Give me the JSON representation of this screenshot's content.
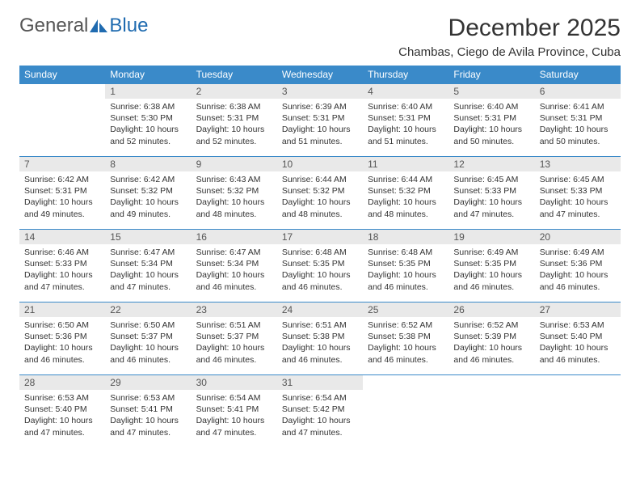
{
  "logo": {
    "text_general": "General",
    "text_blue": "Blue",
    "color_general": "#666666",
    "color_blue": "#1f6bb0"
  },
  "header": {
    "month_title": "December 2025",
    "location": "Chambas, Ciego de Avila Province, Cuba"
  },
  "style": {
    "header_bg": "#3a8ac9",
    "header_fg": "#ffffff",
    "row_border": "#3a8ac9",
    "daynum_bg": "#e9e9e9",
    "body_bg": "#ffffff"
  },
  "day_names": [
    "Sunday",
    "Monday",
    "Tuesday",
    "Wednesday",
    "Thursday",
    "Friday",
    "Saturday"
  ],
  "weeks": [
    [
      null,
      {
        "n": "1",
        "sunrise": "6:38 AM",
        "sunset": "5:30 PM",
        "daylight": "10 hours and 52 minutes."
      },
      {
        "n": "2",
        "sunrise": "6:38 AM",
        "sunset": "5:31 PM",
        "daylight": "10 hours and 52 minutes."
      },
      {
        "n": "3",
        "sunrise": "6:39 AM",
        "sunset": "5:31 PM",
        "daylight": "10 hours and 51 minutes."
      },
      {
        "n": "4",
        "sunrise": "6:40 AM",
        "sunset": "5:31 PM",
        "daylight": "10 hours and 51 minutes."
      },
      {
        "n": "5",
        "sunrise": "6:40 AM",
        "sunset": "5:31 PM",
        "daylight": "10 hours and 50 minutes."
      },
      {
        "n": "6",
        "sunrise": "6:41 AM",
        "sunset": "5:31 PM",
        "daylight": "10 hours and 50 minutes."
      }
    ],
    [
      {
        "n": "7",
        "sunrise": "6:42 AM",
        "sunset": "5:31 PM",
        "daylight": "10 hours and 49 minutes."
      },
      {
        "n": "8",
        "sunrise": "6:42 AM",
        "sunset": "5:32 PM",
        "daylight": "10 hours and 49 minutes."
      },
      {
        "n": "9",
        "sunrise": "6:43 AM",
        "sunset": "5:32 PM",
        "daylight": "10 hours and 48 minutes."
      },
      {
        "n": "10",
        "sunrise": "6:44 AM",
        "sunset": "5:32 PM",
        "daylight": "10 hours and 48 minutes."
      },
      {
        "n": "11",
        "sunrise": "6:44 AM",
        "sunset": "5:32 PM",
        "daylight": "10 hours and 48 minutes."
      },
      {
        "n": "12",
        "sunrise": "6:45 AM",
        "sunset": "5:33 PM",
        "daylight": "10 hours and 47 minutes."
      },
      {
        "n": "13",
        "sunrise": "6:45 AM",
        "sunset": "5:33 PM",
        "daylight": "10 hours and 47 minutes."
      }
    ],
    [
      {
        "n": "14",
        "sunrise": "6:46 AM",
        "sunset": "5:33 PM",
        "daylight": "10 hours and 47 minutes."
      },
      {
        "n": "15",
        "sunrise": "6:47 AM",
        "sunset": "5:34 PM",
        "daylight": "10 hours and 47 minutes."
      },
      {
        "n": "16",
        "sunrise": "6:47 AM",
        "sunset": "5:34 PM",
        "daylight": "10 hours and 46 minutes."
      },
      {
        "n": "17",
        "sunrise": "6:48 AM",
        "sunset": "5:35 PM",
        "daylight": "10 hours and 46 minutes."
      },
      {
        "n": "18",
        "sunrise": "6:48 AM",
        "sunset": "5:35 PM",
        "daylight": "10 hours and 46 minutes."
      },
      {
        "n": "19",
        "sunrise": "6:49 AM",
        "sunset": "5:35 PM",
        "daylight": "10 hours and 46 minutes."
      },
      {
        "n": "20",
        "sunrise": "6:49 AM",
        "sunset": "5:36 PM",
        "daylight": "10 hours and 46 minutes."
      }
    ],
    [
      {
        "n": "21",
        "sunrise": "6:50 AM",
        "sunset": "5:36 PM",
        "daylight": "10 hours and 46 minutes."
      },
      {
        "n": "22",
        "sunrise": "6:50 AM",
        "sunset": "5:37 PM",
        "daylight": "10 hours and 46 minutes."
      },
      {
        "n": "23",
        "sunrise": "6:51 AM",
        "sunset": "5:37 PM",
        "daylight": "10 hours and 46 minutes."
      },
      {
        "n": "24",
        "sunrise": "6:51 AM",
        "sunset": "5:38 PM",
        "daylight": "10 hours and 46 minutes."
      },
      {
        "n": "25",
        "sunrise": "6:52 AM",
        "sunset": "5:38 PM",
        "daylight": "10 hours and 46 minutes."
      },
      {
        "n": "26",
        "sunrise": "6:52 AM",
        "sunset": "5:39 PM",
        "daylight": "10 hours and 46 minutes."
      },
      {
        "n": "27",
        "sunrise": "6:53 AM",
        "sunset": "5:40 PM",
        "daylight": "10 hours and 46 minutes."
      }
    ],
    [
      {
        "n": "28",
        "sunrise": "6:53 AM",
        "sunset": "5:40 PM",
        "daylight": "10 hours and 47 minutes."
      },
      {
        "n": "29",
        "sunrise": "6:53 AM",
        "sunset": "5:41 PM",
        "daylight": "10 hours and 47 minutes."
      },
      {
        "n": "30",
        "sunrise": "6:54 AM",
        "sunset": "5:41 PM",
        "daylight": "10 hours and 47 minutes."
      },
      {
        "n": "31",
        "sunrise": "6:54 AM",
        "sunset": "5:42 PM",
        "daylight": "10 hours and 47 minutes."
      },
      null,
      null,
      null
    ]
  ],
  "labels": {
    "sunrise": "Sunrise:",
    "sunset": "Sunset:",
    "daylight": "Daylight:"
  }
}
